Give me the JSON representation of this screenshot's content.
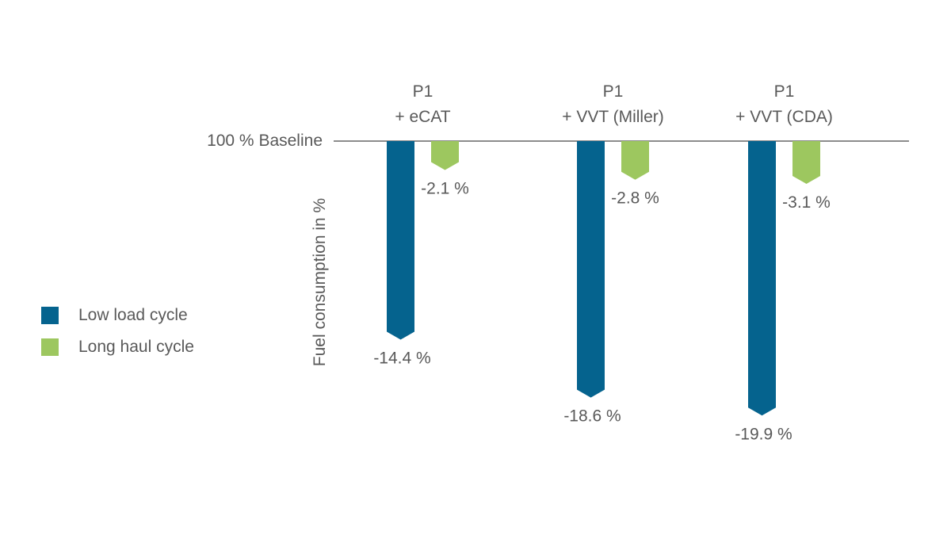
{
  "chart_data": {
    "type": "bar",
    "categories": [
      {
        "line1": "P1",
        "line2": "+ eCAT"
      },
      {
        "line1": "P1",
        "line2": "+ VVT (Miller)"
      },
      {
        "line1": "P1",
        "line2": "+ VVT (CDA)"
      }
    ],
    "series": [
      {
        "name": "Low load cycle",
        "color": "#05638e",
        "values": [
          -14.4,
          -18.6,
          -19.9
        ],
        "labels": [
          "-14.4 %",
          "-18.6 %",
          "-19.9  %"
        ]
      },
      {
        "name": "Long haul cycle",
        "color": "#9dc75f",
        "values": [
          -2.1,
          -2.8,
          -3.1
        ],
        "labels": [
          "-2.1 %",
          "-2.8 %",
          "-3.1 %"
        ]
      }
    ],
    "baseline_label": "100 % Baseline",
    "ylabel": "Fuel consumption in %",
    "legend_position": "left"
  }
}
